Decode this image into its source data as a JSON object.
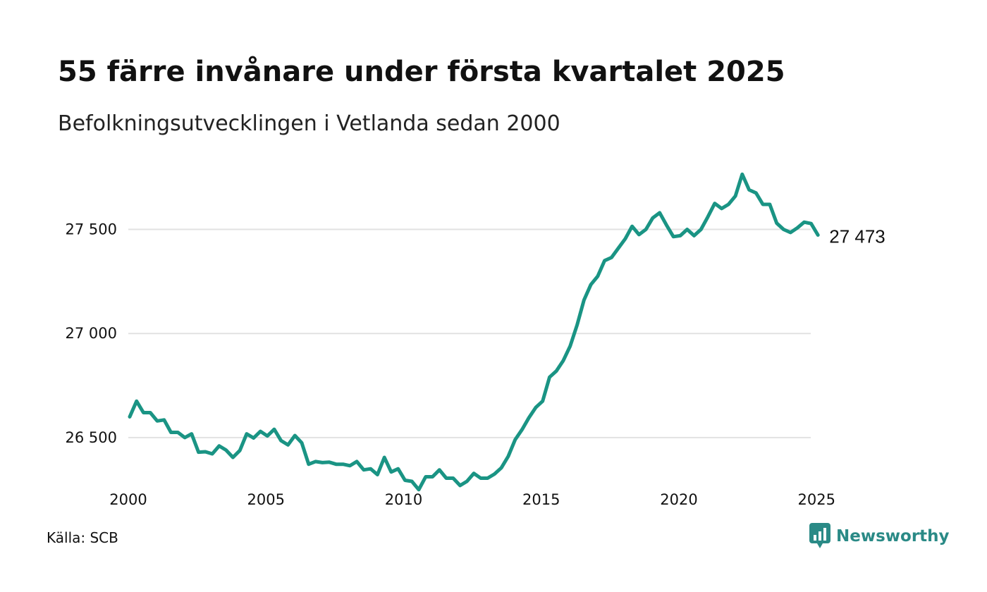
{
  "header": {
    "title": "55 färre invånare under första kvartalet 2025",
    "subtitle": "Befolkningsutvecklingen i Vetlanda sedan 2000"
  },
  "footer": {
    "source": "Källa: SCB",
    "brand": "Newsworthy",
    "brand_icon": "newsworthy-logo-icon"
  },
  "colors": {
    "line": "#1a9484",
    "grid": "#e2e2e2",
    "brand": "#2a8a86"
  },
  "chart_data": {
    "type": "line",
    "title": "",
    "xlabel": "",
    "ylabel": "",
    "xlim": [
      2000,
      2025.3
    ],
    "ylim": [
      26300,
      27830
    ],
    "grid": "horizontal",
    "legend": "none",
    "x_ticks": [
      2000,
      2005,
      2010,
      2015,
      2020,
      2025
    ],
    "x_tick_labels": [
      "2000",
      "2005",
      "2010",
      "2015",
      "2020",
      "2025"
    ],
    "y_ticks": [
      26500,
      27000,
      27500
    ],
    "y_tick_labels": [
      "26 500",
      "27 000",
      "27 500"
    ],
    "end_label": "27 473",
    "series": [
      {
        "values": [
          26600,
          26675,
          26620,
          26620,
          26580,
          26585,
          26525,
          26525,
          26500,
          26518,
          26430,
          26432,
          26422,
          26460,
          26440,
          26405,
          26438,
          26518,
          26498,
          26530,
          26508,
          26540,
          26485,
          26465,
          26510,
          26475,
          26372,
          26385,
          26380,
          26382,
          26372,
          26372,
          26365,
          26385,
          26345,
          26350,
          26322,
          26405,
          26335,
          26350,
          26295,
          26290,
          26250,
          26312,
          26312,
          26345,
          26305,
          26305,
          26270,
          26290,
          26328,
          26305,
          26305,
          26325,
          26355,
          26410,
          26490,
          26538,
          26595,
          26645,
          26675,
          26790,
          26820,
          26870,
          26940,
          27040,
          27160,
          27235,
          27275,
          27350,
          27365,
          27410,
          27455,
          27515,
          27475,
          27500,
          27555,
          27580,
          27520,
          27465,
          27470,
          27500,
          27470,
          27500,
          27560,
          27625,
          27600,
          27620,
          27660,
          27765,
          27690,
          27675,
          27620,
          27620,
          27530,
          27500,
          27485,
          27507,
          27535,
          27528,
          27473
        ]
      }
    ]
  }
}
